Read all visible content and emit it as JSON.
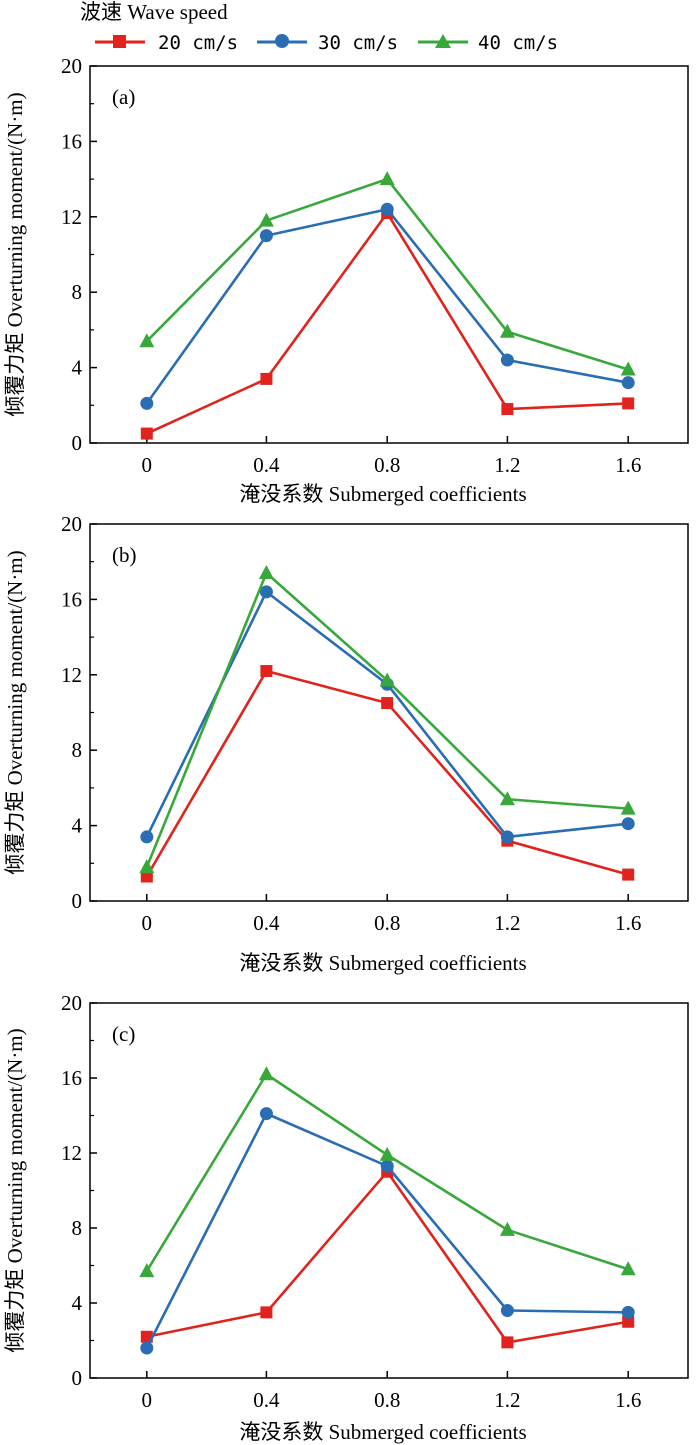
{
  "legend": {
    "title": "波速 Wave speed",
    "entries": [
      "20 cm/s",
      "30 cm/s",
      "40 cm/s"
    ]
  },
  "colors": {
    "s20": "#e0231c",
    "s30": "#2a6db3",
    "s40": "#38a83a"
  },
  "chart_data": [
    {
      "type": "line",
      "panel_label": "(a)",
      "xlabel": "淹没系数 Submerged coefficients",
      "ylabel": "倾覆力矩 Overturning moment/(N·m)",
      "x": [
        0,
        0.4,
        0.8,
        1.2,
        1.6
      ],
      "x_tick_labels": [
        "0",
        "0.4",
        "0.8",
        "1.2",
        "1.6"
      ],
      "y_ticks": [
        0,
        4,
        8,
        12,
        16,
        20
      ],
      "y_tick_labels": [
        "0",
        "4",
        "8",
        "12",
        "16",
        "20"
      ],
      "ylim": [
        0,
        20
      ],
      "series": [
        {
          "name": "20 cm/s",
          "marker": "square",
          "values": [
            0.5,
            3.4,
            12.2,
            1.8,
            2.1
          ]
        },
        {
          "name": "30 cm/s",
          "marker": "circle",
          "values": [
            2.1,
            11.0,
            12.4,
            4.4,
            3.2
          ]
        },
        {
          "name": "40 cm/s",
          "marker": "triangle",
          "values": [
            5.4,
            11.8,
            14.0,
            5.9,
            3.9
          ]
        }
      ]
    },
    {
      "type": "line",
      "panel_label": "(b)",
      "xlabel": "淹没系数 Submerged coefficients",
      "ylabel": "倾覆力矩 Overturning moment/(N·m)",
      "x": [
        0,
        0.4,
        0.8,
        1.2,
        1.6
      ],
      "x_tick_labels": [
        "0",
        "0.4",
        "0.8",
        "1.2",
        "1.6"
      ],
      "y_ticks": [
        0,
        4,
        8,
        12,
        16,
        20
      ],
      "y_tick_labels": [
        "0",
        "4",
        "8",
        "12",
        "16",
        "20"
      ],
      "ylim": [
        0,
        20
      ],
      "series": [
        {
          "name": "20 cm/s",
          "marker": "square",
          "values": [
            1.3,
            12.2,
            10.5,
            3.2,
            1.4
          ]
        },
        {
          "name": "30 cm/s",
          "marker": "circle",
          "values": [
            3.4,
            16.4,
            11.5,
            3.4,
            4.1
          ]
        },
        {
          "name": "40 cm/s",
          "marker": "triangle",
          "values": [
            1.8,
            17.4,
            11.7,
            5.4,
            4.9
          ]
        }
      ]
    },
    {
      "type": "line",
      "panel_label": "(c)",
      "xlabel": "淹没系数 Submerged coefficients",
      "ylabel": "倾覆力矩 Overturning moment/(N·m)",
      "x": [
        0,
        0.4,
        0.8,
        1.2,
        1.6
      ],
      "x_tick_labels": [
        "0",
        "0.4",
        "0.8",
        "1.2",
        "1.6"
      ],
      "y_ticks": [
        0,
        4,
        8,
        12,
        16,
        20
      ],
      "y_tick_labels": [
        "0",
        "4",
        "8",
        "12",
        "16",
        "20"
      ],
      "ylim": [
        0,
        20
      ],
      "series": [
        {
          "name": "20 cm/s",
          "marker": "square",
          "values": [
            2.2,
            3.5,
            11.0,
            1.9,
            3.0
          ]
        },
        {
          "name": "30 cm/s",
          "marker": "circle",
          "values": [
            1.6,
            14.1,
            11.3,
            3.6,
            3.5
          ]
        },
        {
          "name": "40 cm/s",
          "marker": "triangle",
          "values": [
            5.7,
            16.2,
            11.9,
            7.9,
            5.8
          ]
        }
      ]
    }
  ]
}
